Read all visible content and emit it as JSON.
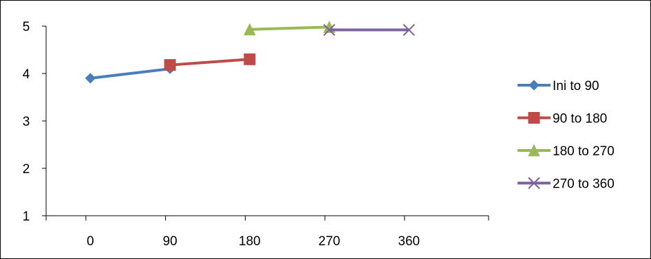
{
  "chart_data": {
    "type": "line",
    "title": "",
    "xlabel": "",
    "ylabel": "",
    "xlim": [
      -50,
      450
    ],
    "ylim": [
      1,
      5
    ],
    "xticks": [
      0,
      90,
      180,
      270,
      360
    ],
    "yticks": [
      1,
      2,
      3,
      4,
      5
    ],
    "grid": false,
    "legend_position": "right",
    "series": [
      {
        "name": "Ini to 90",
        "color": "#4a7ebb",
        "marker": "diamond",
        "points": [
          [
            0,
            3.9
          ],
          [
            90,
            4.1
          ]
        ]
      },
      {
        "name": "90 to 180",
        "color": "#be4b48",
        "marker": "square",
        "points": [
          [
            90,
            4.18
          ],
          [
            180,
            4.3
          ]
        ]
      },
      {
        "name": "180 to 270",
        "color": "#98b954",
        "marker": "triangle",
        "points": [
          [
            180,
            4.93
          ],
          [
            270,
            4.98
          ]
        ]
      },
      {
        "name": "270 to 360",
        "color": "#7d60a0",
        "marker": "x",
        "points": [
          [
            270,
            4.92
          ],
          [
            360,
            4.92
          ]
        ]
      }
    ]
  }
}
